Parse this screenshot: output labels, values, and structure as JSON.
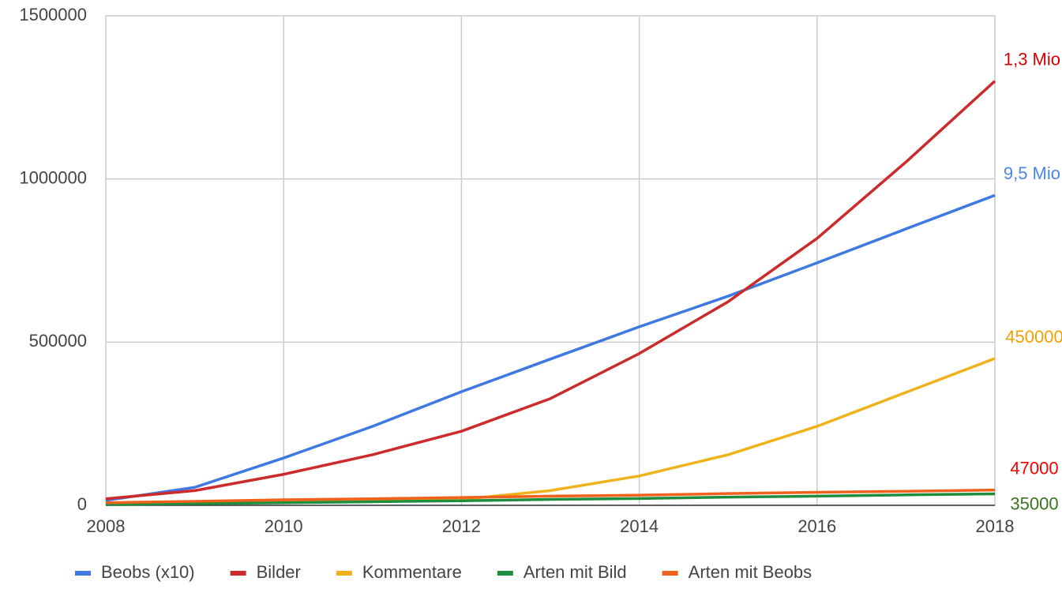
{
  "chart_data": {
    "type": "line",
    "x": [
      2008,
      2009,
      2010,
      2011,
      2012,
      2013,
      2014,
      2015,
      2016,
      2017,
      2018
    ],
    "xlim": [
      2008,
      2018
    ],
    "xticks": [
      2008,
      2010,
      2012,
      2014,
      2016,
      2018
    ],
    "ylim": [
      0,
      1500000
    ],
    "yticks": [
      0,
      500000,
      1000000,
      1500000
    ],
    "grid": true,
    "legend": "bottom",
    "series": [
      {
        "name": "Beobs (x10)",
        "color": "#3d79e0",
        "label_color": "#4a86e8",
        "values": [
          15000,
          55000,
          145000,
          242000,
          348000,
          448000,
          547000,
          641000,
          743000,
          847000,
          950000
        ],
        "value_labels": [
          null,
          null,
          null,
          null,
          null,
          null,
          null,
          null,
          null,
          null,
          "9,5 Mio."
        ]
      },
      {
        "name": "Bilder",
        "color": "#cc2b2b",
        "label_color": "#d50000",
        "values": [
          20000,
          45000,
          95000,
          155000,
          227000,
          327000,
          465000,
          624000,
          818000,
          1052000,
          1300000
        ],
        "value_labels": [
          null,
          null,
          null,
          null,
          null,
          null,
          null,
          null,
          null,
          null,
          "1,3 Mio."
        ]
      },
      {
        "name": "Kommentare",
        "color": "#f0b21a",
        "label_color": "#f4a100",
        "values": [
          5000,
          7000,
          10000,
          12000,
          18000,
          45000,
          90000,
          155000,
          242000,
          346000,
          450000
        ],
        "value_labels": [
          null,
          null,
          null,
          null,
          null,
          null,
          null,
          null,
          null,
          null,
          "450000"
        ]
      },
      {
        "name": "Arten mit Bild",
        "color": "#1e8e3e",
        "label_color": "#38761d",
        "values": [
          2000,
          5000,
          8000,
          11000,
          14000,
          18000,
          21000,
          25000,
          28000,
          32000,
          35000
        ],
        "value_labels": [
          null,
          null,
          null,
          null,
          null,
          null,
          null,
          null,
          null,
          null,
          "35000"
        ]
      },
      {
        "name": "Arten mit Beobs",
        "color": "#f0611c",
        "label_color": "#ff0000",
        "values": [
          8000,
          12000,
          17000,
          20000,
          24000,
          28000,
          31000,
          36000,
          40000,
          43000,
          47000
        ],
        "value_labels": [
          null,
          null,
          null,
          null,
          null,
          null,
          null,
          null,
          null,
          null,
          "47000"
        ]
      }
    ]
  }
}
